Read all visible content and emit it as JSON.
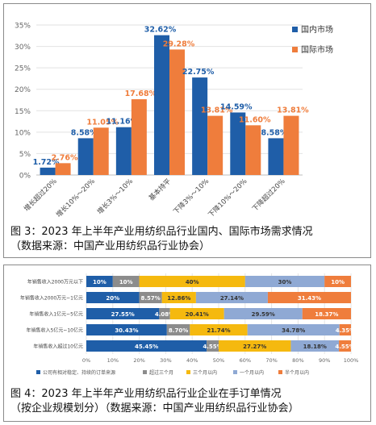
{
  "figure1": {
    "caption_line1": "图 3：2023 年上半年产业用纺织品行业国内、国际市场需求情况",
    "caption_line2": "（数据来源：中国产业用纺织品行业协会）",
    "colors": {
      "domestic": "#1f5ea8",
      "international": "#ef7d3c"
    }
  },
  "figure2": {
    "caption_line1": "图 4：2023 年上半年产业用纺织品行业企业在手订单情况",
    "caption_line2": "（按企业规模划分）（数据来源：中国产业用纺织品行业协会）",
    "colors": [
      "#1f5ea8",
      "#8c8c8c",
      "#f5b90f",
      "#8fa9d4",
      "#ef7d3c"
    ]
  },
  "chart_data": [
    {
      "type": "bar",
      "categories": [
        "增长超过20%",
        "增长10%～20%",
        "增长3%～10%",
        "基本持平",
        "下降3%～10%",
        "下降10%～20%",
        "下降超过20%"
      ],
      "series": [
        {
          "name": "国内市场",
          "values": [
            1.72,
            8.58,
            11.16,
            32.62,
            22.75,
            14.59,
            8.58
          ],
          "labels": [
            "1.72%",
            "8.58%",
            "11.16%",
            "32.62%",
            "22.75%",
            "14.59%",
            "8.58%"
          ]
        },
        {
          "name": "国际市场",
          "values": [
            2.76,
            11.05,
            17.68,
            29.28,
            13.81,
            11.6,
            13.81
          ],
          "labels": [
            "2.76%",
            "11.05%",
            "17.68%",
            "29.28%",
            "13.81%",
            "11.60%",
            "13.81%"
          ]
        }
      ],
      "ylim": [
        0,
        35
      ],
      "yticks": [
        "0%",
        "5%",
        "10%",
        "15%",
        "20%",
        "25%",
        "30%",
        "35%"
      ],
      "grid": true,
      "legend": "top-right"
    },
    {
      "type": "bar",
      "stacked": true,
      "orientation": "horizontal",
      "categories": [
        "年销售收入2000万元以下",
        "年销售收入2000万元~1亿元",
        "年销售收入1亿元~5亿元",
        "年销售收入5亿元~10亿元",
        "年销售收入超过10亿元"
      ],
      "series": [
        {
          "name": "公司有相对稳定、持续的订单来源",
          "values": [
            10,
            20,
            27.55,
            30.43,
            45.45
          ],
          "labels": [
            "10%",
            "20%",
            "27.55%",
            "30.43%",
            "45.45%"
          ]
        },
        {
          "name": "超过三个月",
          "values": [
            10,
            8.57,
            4.08,
            8.7,
            4.55
          ],
          "labels": [
            "10%",
            "8.57%",
            "4.08%",
            "8.70%",
            "4.55%"
          ]
        },
        {
          "name": "三个月以内",
          "values": [
            40,
            12.86,
            20.41,
            21.74,
            27.27
          ],
          "labels": [
            "40%",
            "12.86%",
            "20.41%",
            "21.74%",
            "27.27%"
          ]
        },
        {
          "name": "一个月以内",
          "values": [
            30,
            27.14,
            29.59,
            34.78,
            18.18
          ],
          "labels": [
            "30%",
            "27.14%",
            "29.59%",
            "34.78%",
            "18.18%"
          ]
        },
        {
          "name": "半个月以内",
          "values": [
            10,
            31.43,
            18.37,
            4.35,
            4.55
          ],
          "labels": [
            "10%",
            "31.43%",
            "18.37%",
            "4.35%",
            "4.55%"
          ]
        }
      ],
      "xlim": [
        0,
        100
      ],
      "xticks": [
        "0%",
        "10%",
        "20%",
        "30%",
        "40%",
        "50%",
        "60%",
        "70%",
        "80%",
        "90%",
        "100%"
      ],
      "grid": true,
      "legend": "bottom"
    }
  ]
}
